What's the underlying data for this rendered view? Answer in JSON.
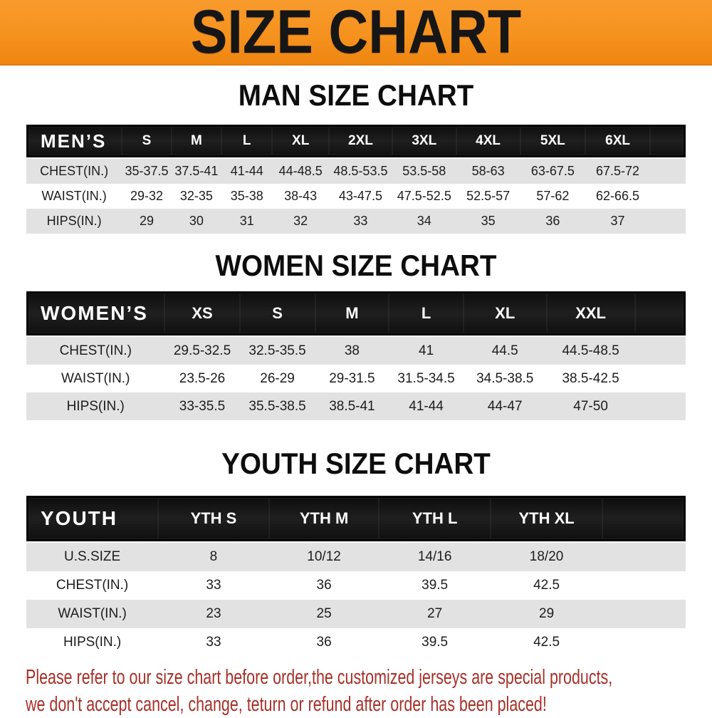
{
  "banner": {
    "title": "SIZE CHART",
    "bg_color": "#f6921e",
    "text_color": "#161616"
  },
  "chart_data": [
    {
      "type": "table",
      "title": "MAN SIZE CHART",
      "header_label": "MEN’S",
      "columns": [
        "S",
        "M",
        "L",
        "XL",
        "2XL",
        "3XL",
        "4XL",
        "5XL",
        "6XL"
      ],
      "rows": [
        {
          "label": "CHEST(IN.)",
          "values": [
            "35-37.5",
            "37.5-41",
            "41-44",
            "44-48.5",
            "48.5-53.5",
            "53.5-58",
            "58-63",
            "63-67.5",
            "67.5-72"
          ]
        },
        {
          "label": "WAIST(IN.)",
          "values": [
            "29-32",
            "32-35",
            "35-38",
            "38-43",
            "43-47.5",
            "47.5-52.5",
            "52.5-57",
            "57-62",
            "62-66.5"
          ]
        },
        {
          "label": "HIPS(IN.)",
          "values": [
            "29",
            "30",
            "31",
            "32",
            "33",
            "34",
            "35",
            "36",
            "37"
          ]
        }
      ]
    },
    {
      "type": "table",
      "title": "WOMEN SIZE CHART",
      "header_label": "WOMEN’S",
      "columns": [
        "XS",
        "S",
        "M",
        "L",
        "XL",
        "XXL"
      ],
      "rows": [
        {
          "label": "CHEST(IN.)",
          "values": [
            "29.5-32.5",
            "32.5-35.5",
            "38",
            "41",
            "44.5",
            "44.5-48.5"
          ]
        },
        {
          "label": "WAIST(IN.)",
          "values": [
            "23.5-26",
            "26-29",
            "29-31.5",
            "31.5-34.5",
            "34.5-38.5",
            "38.5-42.5"
          ]
        },
        {
          "label": "HIPS(IN.)",
          "values": [
            "33-35.5",
            "35.5-38.5",
            "38.5-41",
            "41-44",
            "44-47",
            "47-50"
          ]
        }
      ]
    },
    {
      "type": "table",
      "title": "YOUTH SIZE CHART",
      "header_label": "YOUTH",
      "columns": [
        "YTH S",
        "YTH M",
        "YTH L",
        "YTH XL"
      ],
      "rows": [
        {
          "label": "U.S.SIZE",
          "values": [
            "8",
            "10/12",
            "14/16",
            "18/20"
          ]
        },
        {
          "label": "CHEST(IN.)",
          "values": [
            "33",
            "36",
            "39.5",
            "42.5"
          ]
        },
        {
          "label": "WAIST(IN.)",
          "values": [
            "23",
            "25",
            "27",
            "29"
          ]
        },
        {
          "label": "HIPS(IN.)",
          "values": [
            "33",
            "36",
            "39.5",
            "42.5"
          ]
        }
      ]
    }
  ],
  "disclaimer": {
    "color": "#a63028",
    "lines": [
      "Please refer to our size chart before order,the customized jerseys are special products,",
      "we don't accept cancel, change, teturn or refund after order has been placed!"
    ]
  }
}
